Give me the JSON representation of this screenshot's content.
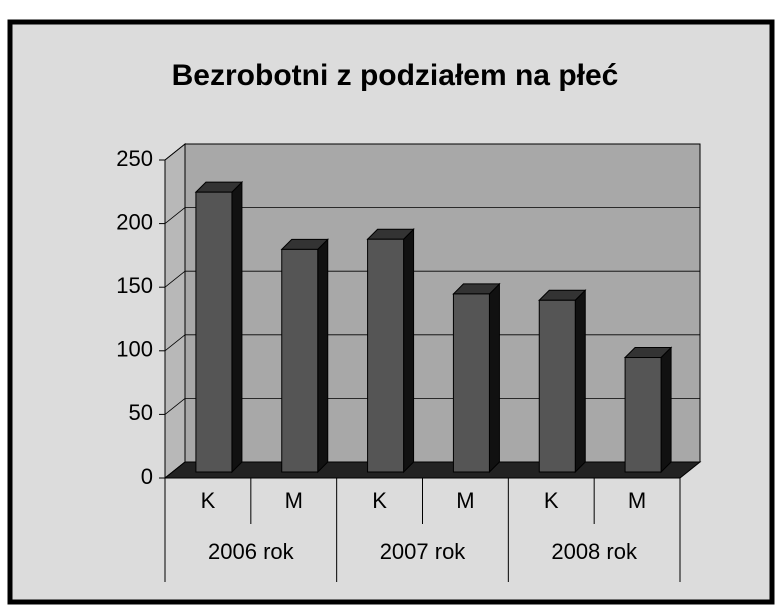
{
  "chart_data": {
    "type": "bar3d",
    "title": "Bezrobotni z podziałem na płeć",
    "categories": [
      "K",
      "M",
      "K",
      "M",
      "K",
      "M"
    ],
    "groups": [
      "2006 rok",
      "2007 rok",
      "2008 rok"
    ],
    "values": [
      220,
      175,
      183,
      140,
      135,
      90
    ],
    "color": "#555555",
    "ylim": [
      0,
      250
    ],
    "yticks": [
      0,
      50,
      100,
      150,
      200,
      250
    ],
    "grid": true
  }
}
